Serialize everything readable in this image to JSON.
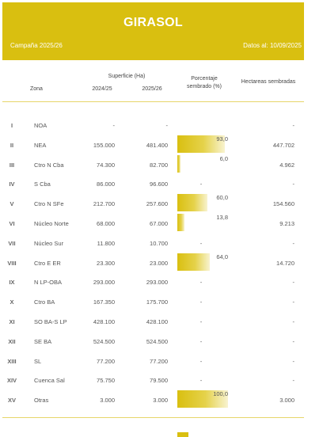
{
  "header": {
    "title": "GIRASOL",
    "campaign": "Campaña 2025/26",
    "date": "Datos al: 10/09/2025"
  },
  "columns": {
    "zona": "Zona",
    "superficie": "Superficie (Ha)",
    "year1": "2024/25",
    "year2": "2025/26",
    "pct": "Porcentaje sembrado (%)",
    "hect": "Hectareas sembradas"
  },
  "rows": [
    {
      "num": "I",
      "zona": "NOA",
      "s24": "-",
      "s25": "-",
      "pct": "",
      "pct_value": 0,
      "hect": "-"
    },
    {
      "num": "II",
      "zona": "NEA",
      "s24": "155.000",
      "s25": "481.400",
      "pct": "93,0",
      "pct_value": 93,
      "hect": "447.702"
    },
    {
      "num": "III",
      "zona": "Ctro N Cba",
      "s24": "74.300",
      "s25": "82.700",
      "pct": "6,0",
      "pct_value": 6,
      "hect": "4.962"
    },
    {
      "num": "IV",
      "zona": "S Cba",
      "s24": "86.000",
      "s25": "96.600",
      "pct": "-",
      "pct_value": 0,
      "hect": "-"
    },
    {
      "num": "V",
      "zona": "Ctro N SFe",
      "s24": "212.700",
      "s25": "257.600",
      "pct": "60,0",
      "pct_value": 60,
      "hect": "154.560"
    },
    {
      "num": "VI",
      "zona": "Núcleo Norte",
      "s24": "68.000",
      "s25": "67.000",
      "pct": "13,8",
      "pct_value": 13.8,
      "hect": "9.213"
    },
    {
      "num": "VII",
      "zona": "Núcleo Sur",
      "s24": "11.800",
      "s25": "10.700",
      "pct": "-",
      "pct_value": 0,
      "hect": "-"
    },
    {
      "num": "VIII",
      "zona": "Ctro E ER",
      "s24": "23.300",
      "s25": "23.000",
      "pct": "64,0",
      "pct_value": 64,
      "hect": "14.720"
    },
    {
      "num": "IX",
      "zona": "N LP-OBA",
      "s24": "293.000",
      "s25": "293.000",
      "pct": "-",
      "pct_value": 0,
      "hect": "-"
    },
    {
      "num": "X",
      "zona": "Ctro BA",
      "s24": "167.350",
      "s25": "175.700",
      "pct": "-",
      "pct_value": 0,
      "hect": "-"
    },
    {
      "num": "XI",
      "zona": "SO BA-S LP",
      "s24": "428.100",
      "s25": "428.100",
      "pct": "-",
      "pct_value": 0,
      "hect": "-"
    },
    {
      "num": "XII",
      "zona": "SE BA",
      "s24": "524.500",
      "s25": "524.500",
      "pct": "-",
      "pct_value": 0,
      "hect": "-"
    },
    {
      "num": "XIII",
      "zona": "SL",
      "s24": "77.200",
      "s25": "77.200",
      "pct": "-",
      "pct_value": 0,
      "hect": "-"
    },
    {
      "num": "XIV",
      "zona": "Cuenca Sal",
      "s24": "75.750",
      "s25": "79.500",
      "pct": "-",
      "pct_value": 0,
      "hect": "-"
    },
    {
      "num": "XV",
      "zona": "Otras",
      "s24": "3.000",
      "s25": "3.000",
      "pct": "100,0",
      "pct_value": 100,
      "hect": "3.000"
    }
  ],
  "colors": {
    "accent": "#d9bf10",
    "text": "#555555"
  }
}
